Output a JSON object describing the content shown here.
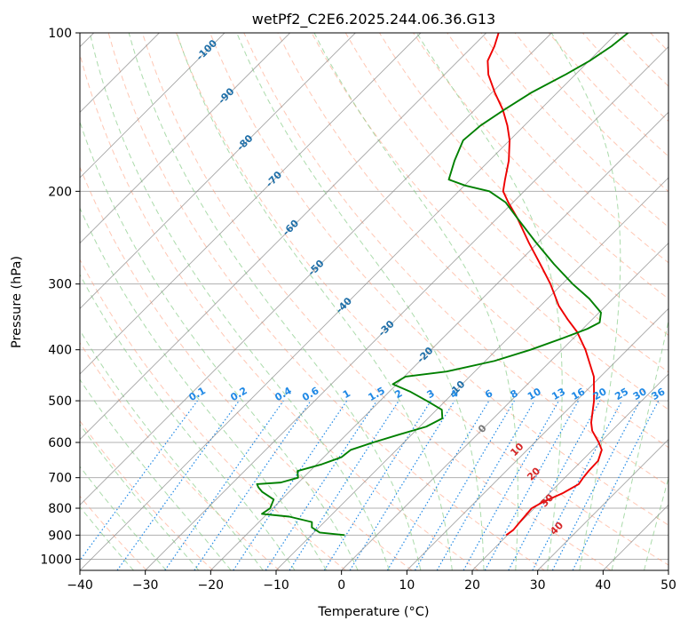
{
  "chart_data": {
    "type": "skew-t",
    "title": "wetPf2_C2E6.2025.244.06.36.G13",
    "xlabel": "Temperature (°C)",
    "ylabel": "Pressure (hPa)",
    "xlim": [
      -40,
      50
    ],
    "ylim": [
      1050,
      100
    ],
    "x_ticks": [
      -40,
      -30,
      -20,
      -10,
      0,
      10,
      20,
      30,
      40,
      50
    ],
    "x_tick_labels": [
      "−40",
      "−30",
      "−20",
      "−10",
      "0",
      "10",
      "20",
      "30",
      "40",
      "50"
    ],
    "y_ticks": [
      100,
      200,
      300,
      400,
      500,
      600,
      700,
      800,
      900,
      1000
    ],
    "y_tick_labels": [
      "100",
      "200",
      "300",
      "400",
      "500",
      "600",
      "700",
      "800",
      "900",
      "1000"
    ],
    "colors": {
      "temperature": "#ee0000",
      "dewpoint": "#008000",
      "dry_adiabat": "#ff9977",
      "moist_adiabat": "#88cc88",
      "mixing_ratio": "#1e88e5",
      "isotherm": "#888888",
      "isotherm_label": "#1f6fa8",
      "moist_label": "#d62728"
    },
    "series": [
      {
        "name": "Temperature",
        "color": "#ee0000",
        "points": [
          {
            "p": 900,
            "t": 19.8
          },
          {
            "p": 880,
            "t": 20.1
          },
          {
            "p": 850,
            "t": 19.9
          },
          {
            "p": 800,
            "t": 19.6
          },
          {
            "p": 780,
            "t": 20.3
          },
          {
            "p": 750,
            "t": 22.0
          },
          {
            "p": 720,
            "t": 23.1
          },
          {
            "p": 700,
            "t": 22.8
          },
          {
            "p": 680,
            "t": 22.6
          },
          {
            "p": 650,
            "t": 22.5
          },
          {
            "p": 620,
            "t": 21.4
          },
          {
            "p": 600,
            "t": 19.8
          },
          {
            "p": 570,
            "t": 17.0
          },
          {
            "p": 550,
            "t": 15.6
          },
          {
            "p": 500,
            "t": 12.7
          },
          {
            "p": 450,
            "t": 9.0
          },
          {
            "p": 400,
            "t": 3.6
          },
          {
            "p": 370,
            "t": -0.4
          },
          {
            "p": 350,
            "t": -3.8
          },
          {
            "p": 330,
            "t": -7.2
          },
          {
            "p": 300,
            "t": -11.8
          },
          {
            "p": 275,
            "t": -16.4
          },
          {
            "p": 250,
            "t": -21.5
          },
          {
            "p": 225,
            "t": -26.9
          },
          {
            "p": 210,
            "t": -30.7
          },
          {
            "p": 200,
            "t": -33.2
          },
          {
            "p": 190,
            "t": -34.7
          },
          {
            "p": 175,
            "t": -37.0
          },
          {
            "p": 160,
            "t": -40.0
          },
          {
            "p": 150,
            "t": -42.6
          },
          {
            "p": 140,
            "t": -45.7
          },
          {
            "p": 130,
            "t": -49.5
          },
          {
            "p": 120,
            "t": -53.3
          },
          {
            "p": 113,
            "t": -55.5
          },
          {
            "p": 106,
            "t": -56.7
          },
          {
            "p": 100,
            "t": -58.1
          }
        ]
      },
      {
        "name": "Dewpoint",
        "color": "#008000",
        "points": [
          {
            "p": 900,
            "t": -4.9
          },
          {
            "p": 890,
            "t": -9.1
          },
          {
            "p": 870,
            "t": -11.1
          },
          {
            "p": 850,
            "t": -11.9
          },
          {
            "p": 830,
            "t": -16.2
          },
          {
            "p": 820,
            "t": -20.8
          },
          {
            "p": 800,
            "t": -20.4
          },
          {
            "p": 770,
            "t": -21.2
          },
          {
            "p": 745,
            "t": -24.1
          },
          {
            "p": 730,
            "t": -25.4
          },
          {
            "p": 720,
            "t": -26.1
          },
          {
            "p": 715,
            "t": -22.7
          },
          {
            "p": 700,
            "t": -20.8
          },
          {
            "p": 680,
            "t": -21.9
          },
          {
            "p": 660,
            "t": -19.2
          },
          {
            "p": 640,
            "t": -17.3
          },
          {
            "p": 620,
            "t": -17.0
          },
          {
            "p": 600,
            "t": -14.7
          },
          {
            "p": 580,
            "t": -12.0
          },
          {
            "p": 560,
            "t": -9.0
          },
          {
            "p": 540,
            "t": -7.8
          },
          {
            "p": 520,
            "t": -9.2
          },
          {
            "p": 500,
            "t": -12.9
          },
          {
            "p": 480,
            "t": -16.9
          },
          {
            "p": 465,
            "t": -20.6
          },
          {
            "p": 450,
            "t": -19.8
          },
          {
            "p": 440,
            "t": -14.3
          },
          {
            "p": 420,
            "t": -8.6
          },
          {
            "p": 400,
            "t": -4.8
          },
          {
            "p": 380,
            "t": -1.6
          },
          {
            "p": 365,
            "t": 0.7
          },
          {
            "p": 355,
            "t": 1.6
          },
          {
            "p": 340,
            "t": 0.3
          },
          {
            "p": 320,
            "t": -3.6
          },
          {
            "p": 300,
            "t": -8.4
          },
          {
            "p": 275,
            "t": -14.3
          },
          {
            "p": 250,
            "t": -20.4
          },
          {
            "p": 225,
            "t": -26.9
          },
          {
            "p": 210,
            "t": -31.1
          },
          {
            "p": 200,
            "t": -35.3
          },
          {
            "p": 195,
            "t": -39.9
          },
          {
            "p": 190,
            "t": -43.3
          },
          {
            "p": 175,
            "t": -45.3
          },
          {
            "p": 160,
            "t": -47.1
          },
          {
            "p": 150,
            "t": -46.7
          },
          {
            "p": 140,
            "t": -45.5
          },
          {
            "p": 130,
            "t": -44.0
          },
          {
            "p": 120,
            "t": -41.5
          },
          {
            "p": 113,
            "t": -39.9
          },
          {
            "p": 106,
            "t": -38.8
          },
          {
            "p": 100,
            "t": -38.3
          }
        ]
      }
    ],
    "isotherm_labels": [
      "-100",
      "-90",
      "-80",
      "-70",
      "-60",
      "-50",
      "-40",
      "-30",
      "-20",
      "-10",
      "0"
    ],
    "isotherm_label_values": [
      -100,
      -90,
      -80,
      -70,
      -60,
      -50,
      -40,
      -30,
      -20,
      -10,
      0
    ],
    "mixing_ratio_labels": [
      "0.1",
      "0.2",
      "0.4",
      "0.6",
      "1",
      "1.5",
      "2",
      "3",
      "4",
      "6",
      "8",
      "10",
      "13",
      "16",
      "20",
      "25",
      "30",
      "36"
    ],
    "moist_adiabat_labels": [
      "10",
      "20",
      "30",
      "40"
    ]
  }
}
